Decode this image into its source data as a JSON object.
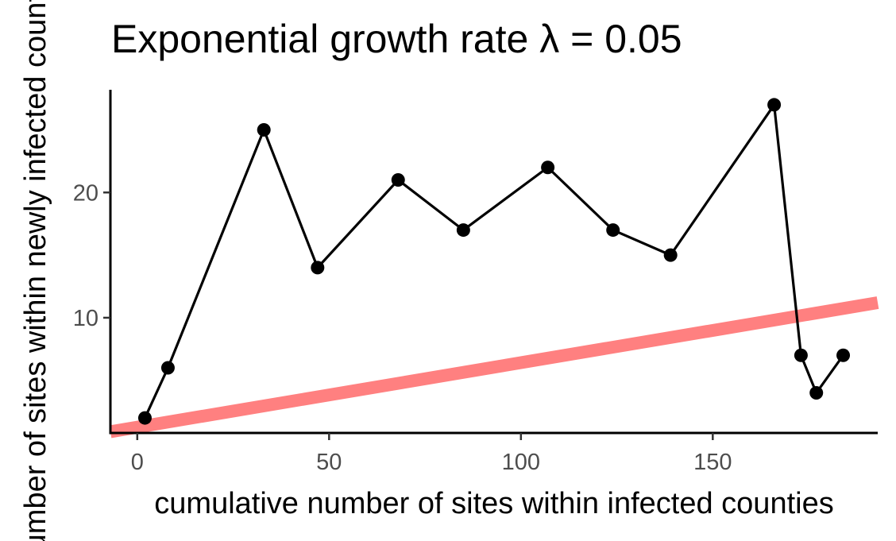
{
  "chart_data": {
    "type": "line",
    "title": "Exponential growth rate λ = 0.05",
    "xlabel": "cumulative number of sites within infected counties",
    "ylabel": "number of sites within newly infected counties",
    "xlim": [
      -7,
      193
    ],
    "ylim": [
      0.8,
      28.2
    ],
    "x_ticks": [
      0,
      50,
      100,
      150
    ],
    "y_ticks": [
      10,
      20
    ],
    "grid": false,
    "series": [
      {
        "x": [
          2,
          8,
          33,
          47,
          68,
          85,
          107,
          124,
          139,
          166,
          173,
          177,
          184
        ],
        "y": [
          2,
          6,
          25,
          14,
          21,
          17,
          22,
          17,
          15,
          27,
          7,
          4,
          7
        ],
        "color": "#000000"
      }
    ],
    "trend_line": {
      "x": [
        -7,
        193
      ],
      "y": [
        0.9,
        11.2
      ],
      "color": "#ff8080"
    }
  }
}
